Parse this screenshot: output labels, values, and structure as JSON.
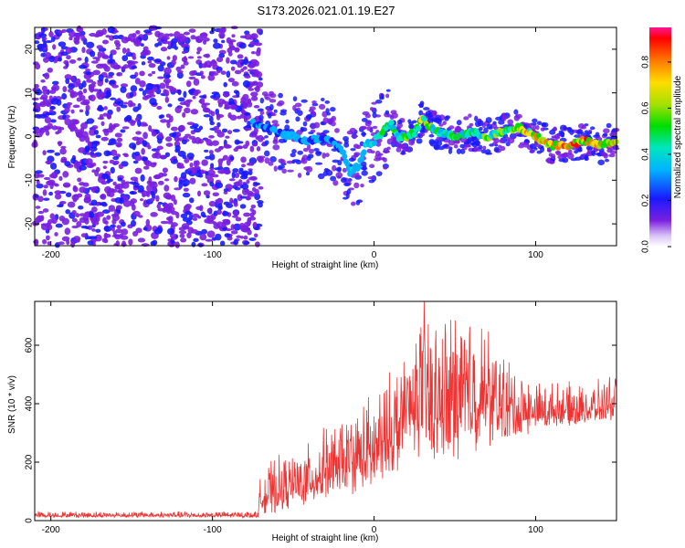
{
  "title": "S173.2026.021.01.19.E27",
  "chart_data": [
    {
      "type": "heatmap",
      "name": "spectrogram",
      "xlabel": "Height of straight line (km)",
      "ylabel": "Frequency (Hz)",
      "xlim": [
        -210,
        150
      ],
      "ylim": [
        -25,
        25
      ],
      "xticks": [
        -200,
        -100,
        0,
        100
      ],
      "yticks": [
        -20,
        -10,
        0,
        10,
        20
      ],
      "colorbar": {
        "label": "Normalized spectral amplitude",
        "range": [
          0,
          0.95
        ],
        "ticks": [
          0.0,
          0.2,
          0.4,
          0.6,
          0.8
        ],
        "tick_labels": [
          "0.0",
          "0.2",
          "0.4",
          "0.6",
          "0.8"
        ]
      },
      "ridge": {
        "x": [
          -75,
          -60,
          -50,
          -40,
          -30,
          -20,
          -15,
          -10,
          -5,
          0,
          5,
          10,
          15,
          20,
          25,
          30,
          35,
          40,
          50,
          60,
          70,
          80,
          90,
          100,
          110,
          120,
          130,
          140,
          150
        ],
        "freq": [
          3,
          1,
          0,
          -1,
          0,
          -3,
          -8,
          -7,
          -2,
          -1,
          1,
          3,
          0,
          0,
          1,
          4,
          2,
          1,
          0,
          1,
          0,
          1,
          2,
          0,
          -2,
          -2,
          -1,
          -2,
          -1
        ],
        "amplitude": [
          0.25,
          0.3,
          0.3,
          0.25,
          0.3,
          0.35,
          0.4,
          0.35,
          0.4,
          0.45,
          0.5,
          0.45,
          0.5,
          0.55,
          0.6,
          0.65,
          0.55,
          0.5,
          0.5,
          0.5,
          0.55,
          0.6,
          0.7,
          0.75,
          0.85,
          0.9,
          0.85,
          0.8,
          0.75
        ]
      },
      "noise_region_x": [
        -210,
        -70
      ]
    },
    {
      "type": "line",
      "name": "snr",
      "xlabel": "Height of straight line (km)",
      "ylabel": "SNR (10 * v/v)",
      "xlim": [
        -210,
        150
      ],
      "ylim": [
        0,
        750
      ],
      "xticks": [
        -200,
        -100,
        0,
        100
      ],
      "yticks": [
        0,
        200,
        400,
        600
      ],
      "color": "#ee3333",
      "envelope": {
        "x": [
          -210,
          -72,
          -70,
          -60,
          -50,
          -40,
          -30,
          -20,
          -10,
          0,
          10,
          20,
          30,
          40,
          50,
          60,
          70,
          80,
          90,
          100,
          110,
          120,
          130,
          140,
          150
        ],
        "low": [
          10,
          10,
          15,
          25,
          40,
          60,
          70,
          80,
          90,
          100,
          150,
          180,
          220,
          200,
          200,
          230,
          250,
          260,
          280,
          300,
          320,
          320,
          330,
          330,
          340
        ],
        "high": [
          30,
          30,
          170,
          200,
          220,
          250,
          300,
          330,
          380,
          420,
          480,
          600,
          720,
          650,
          700,
          700,
          640,
          560,
          500,
          470,
          460,
          460,
          450,
          470,
          500
        ]
      }
    }
  ]
}
